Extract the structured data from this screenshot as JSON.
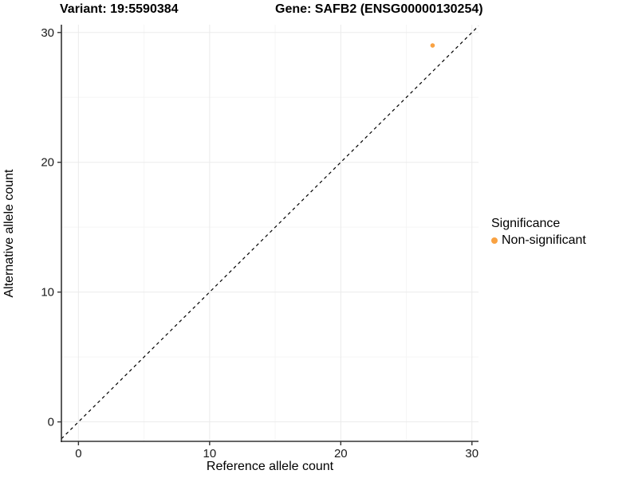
{
  "titles": {
    "variant": "Variant: 19:5590384",
    "gene": "Gene: SAFB2 (ENSG00000130254)"
  },
  "legend": {
    "title": "Significance",
    "items": [
      {
        "label": "Non-significant",
        "color": "#F9A242",
        "marker": "dot"
      }
    ]
  },
  "colors": {
    "background": "#ffffff",
    "axis_line": "#333333",
    "major_grid": "#ebebeb",
    "minor_grid": "#f5f5f5",
    "reference_line": "#000000",
    "point_nonsignificant": "#F9A242"
  },
  "chart_data": {
    "type": "scatter",
    "title_left": "Variant: 19:5590384",
    "title_right": "Gene: SAFB2 (ENSG00000130254)",
    "xlabel": "Reference allele count",
    "ylabel": "Alternative allele count",
    "x_ticks": [
      0,
      10,
      20,
      30
    ],
    "y_ticks": [
      0,
      10,
      20,
      30
    ],
    "x_minor_ticks": [
      5,
      15,
      25
    ],
    "y_minor_ticks": [
      5,
      15,
      25
    ],
    "xlim": [
      -1.3,
      30.5
    ],
    "ylim": [
      -1.5,
      30.6
    ],
    "grid": true,
    "legend_position": "right",
    "series": [
      {
        "name": "Non-significant",
        "color": "#F9A242",
        "points": [
          {
            "x": 27,
            "y": 29
          }
        ]
      }
    ],
    "reference_line": {
      "type": "identity-diagonal",
      "equation": "y = x",
      "style": "dashed",
      "color": "#000000"
    }
  }
}
